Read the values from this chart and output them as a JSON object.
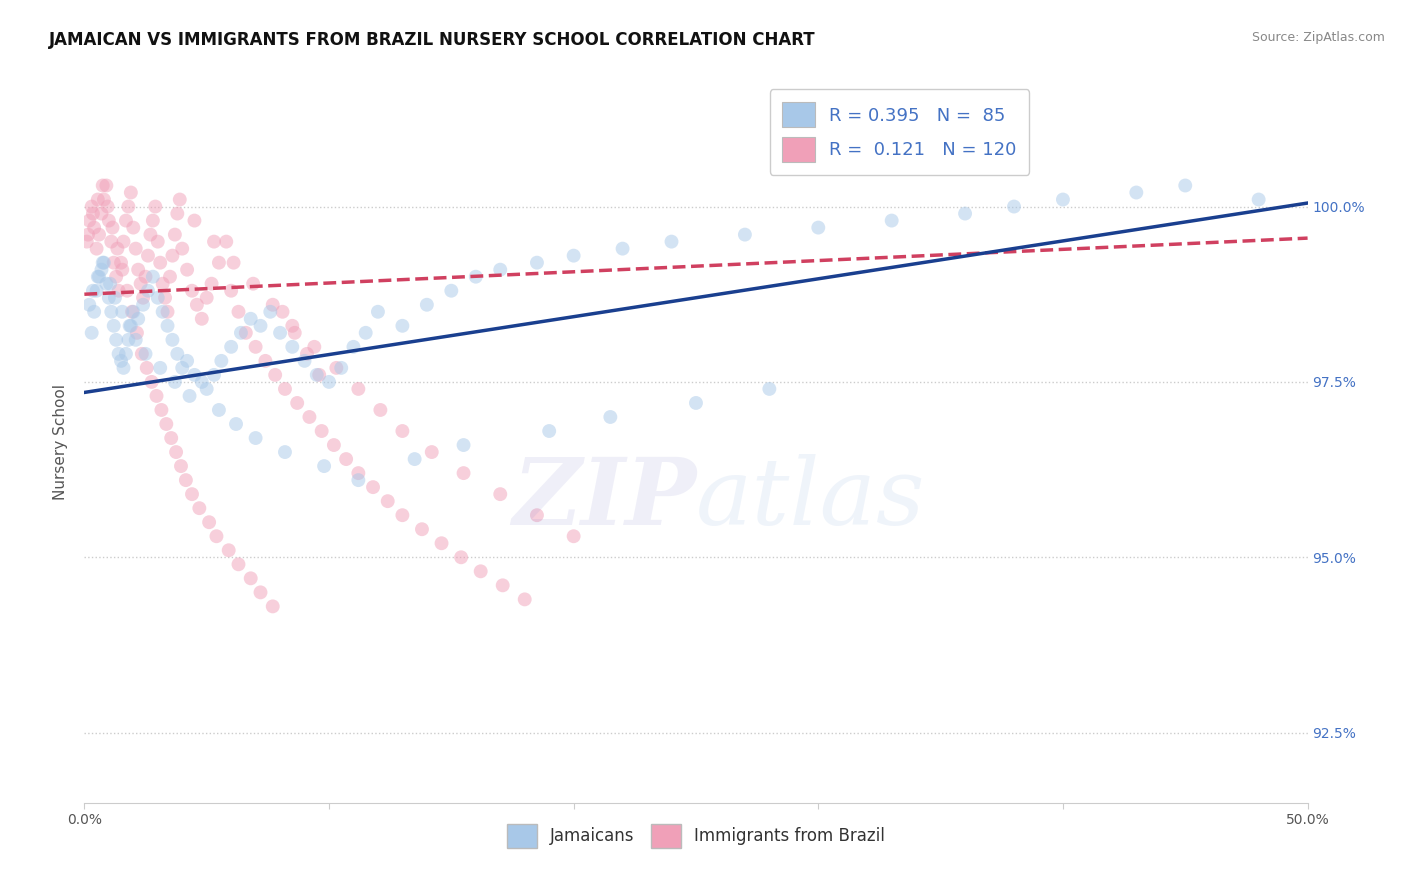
{
  "title": "JAMAICAN VS IMMIGRANTS FROM BRAZIL NURSERY SCHOOL CORRELATION CHART",
  "source_text": "Source: ZipAtlas.com",
  "ylabel": "Nursery School",
  "xlim": [
    0.0,
    50.0
  ],
  "ylim": [
    91.5,
    101.8
  ],
  "yticks": [
    92.5,
    95.0,
    97.5,
    100.0
  ],
  "ytick_labels": [
    "92.5%",
    "95.0%",
    "97.5%",
    "100.0%"
  ],
  "blue_color": "#a8c8e8",
  "pink_color": "#f0a0b8",
  "blue_line_color": "#1a3f8f",
  "pink_line_color": "#d04060",
  "watermark_zip": "ZIP",
  "watermark_atlas": "atlas",
  "watermark_alpha": 0.13,
  "background_color": "#ffffff",
  "grid_color": "#cccccc",
  "right_ytick_color": "#4472c4",
  "dot_size": 100,
  "dot_alpha": 0.5,
  "blue_line_x0": 0.0,
  "blue_line_y0": 97.35,
  "blue_line_x1": 50.0,
  "blue_line_y1": 100.05,
  "pink_line_x0": 0.0,
  "pink_line_y0": 98.75,
  "pink_line_x1": 50.0,
  "pink_line_y1": 99.55,
  "blue_x": [
    0.3,
    0.4,
    0.5,
    0.6,
    0.7,
    0.8,
    0.9,
    1.0,
    1.1,
    1.2,
    1.3,
    1.4,
    1.5,
    1.6,
    1.7,
    1.8,
    1.9,
    2.0,
    2.2,
    2.4,
    2.6,
    2.8,
    3.0,
    3.2,
    3.4,
    3.6,
    3.8,
    4.0,
    4.2,
    4.5,
    4.8,
    5.0,
    5.3,
    5.6,
    6.0,
    6.4,
    6.8,
    7.2,
    7.6,
    8.0,
    8.5,
    9.0,
    9.5,
    10.0,
    10.5,
    11.0,
    11.5,
    12.0,
    13.0,
    14.0,
    15.0,
    16.0,
    17.0,
    18.5,
    20.0,
    22.0,
    24.0,
    27.0,
    30.0,
    33.0,
    36.0,
    38.0,
    40.0,
    43.0,
    45.0,
    48.0,
    0.2,
    0.35,
    0.55,
    0.75,
    1.05,
    1.25,
    1.55,
    1.85,
    2.1,
    2.5,
    3.1,
    3.7,
    4.3,
    5.5,
    6.2,
    7.0,
    8.2,
    9.8,
    11.2,
    13.5,
    15.5,
    19.0,
    21.5,
    25.0,
    28.0
  ],
  "blue_y": [
    98.2,
    98.5,
    98.8,
    99.0,
    99.1,
    99.2,
    98.9,
    98.7,
    98.5,
    98.3,
    98.1,
    97.9,
    97.8,
    97.7,
    97.9,
    98.1,
    98.3,
    98.5,
    98.4,
    98.6,
    98.8,
    99.0,
    98.7,
    98.5,
    98.3,
    98.1,
    97.9,
    97.7,
    97.8,
    97.6,
    97.5,
    97.4,
    97.6,
    97.8,
    98.0,
    98.2,
    98.4,
    98.3,
    98.5,
    98.2,
    98.0,
    97.8,
    97.6,
    97.5,
    97.7,
    98.0,
    98.2,
    98.5,
    98.3,
    98.6,
    98.8,
    99.0,
    99.1,
    99.2,
    99.3,
    99.4,
    99.5,
    99.6,
    99.7,
    99.8,
    99.9,
    100.0,
    100.1,
    100.2,
    100.3,
    100.1,
    98.6,
    98.8,
    99.0,
    99.2,
    98.9,
    98.7,
    98.5,
    98.3,
    98.1,
    97.9,
    97.7,
    97.5,
    97.3,
    97.1,
    96.9,
    96.7,
    96.5,
    96.3,
    96.1,
    96.4,
    96.6,
    96.8,
    97.0,
    97.2,
    97.4
  ],
  "pink_x": [
    0.1,
    0.2,
    0.3,
    0.4,
    0.5,
    0.6,
    0.7,
    0.8,
    0.9,
    1.0,
    1.1,
    1.2,
    1.3,
    1.4,
    1.5,
    1.6,
    1.7,
    1.8,
    1.9,
    2.0,
    2.1,
    2.2,
    2.3,
    2.4,
    2.5,
    2.6,
    2.7,
    2.8,
    2.9,
    3.0,
    3.1,
    3.2,
    3.3,
    3.4,
    3.5,
    3.6,
    3.7,
    3.8,
    3.9,
    4.0,
    4.2,
    4.4,
    4.6,
    4.8,
    5.0,
    5.2,
    5.5,
    5.8,
    6.0,
    6.3,
    6.6,
    7.0,
    7.4,
    7.8,
    8.2,
    8.7,
    9.2,
    9.7,
    10.2,
    10.7,
    11.2,
    11.8,
    12.4,
    13.0,
    13.8,
    14.6,
    15.4,
    16.2,
    17.1,
    18.0,
    0.15,
    0.35,
    0.55,
    0.75,
    0.95,
    1.15,
    1.35,
    1.55,
    1.75,
    1.95,
    2.15,
    2.35,
    2.55,
    2.75,
    2.95,
    3.15,
    3.35,
    3.55,
    3.75,
    3.95,
    4.15,
    4.4,
    4.7,
    5.1,
    5.4,
    5.9,
    6.3,
    6.8,
    7.2,
    7.7,
    8.1,
    8.6,
    9.1,
    9.6,
    4.5,
    5.3,
    6.1,
    6.9,
    7.7,
    8.5,
    9.4,
    10.3,
    11.2,
    12.1,
    13.0,
    14.2,
    15.5,
    17.0,
    18.5,
    20.0
  ],
  "pink_y": [
    99.5,
    99.8,
    100.0,
    99.7,
    99.4,
    99.6,
    99.9,
    100.1,
    100.3,
    99.8,
    99.5,
    99.2,
    99.0,
    98.8,
    99.2,
    99.5,
    99.8,
    100.0,
    100.2,
    99.7,
    99.4,
    99.1,
    98.9,
    98.7,
    99.0,
    99.3,
    99.6,
    99.8,
    100.0,
    99.5,
    99.2,
    98.9,
    98.7,
    98.5,
    99.0,
    99.3,
    99.6,
    99.9,
    100.1,
    99.4,
    99.1,
    98.8,
    98.6,
    98.4,
    98.7,
    98.9,
    99.2,
    99.5,
    98.8,
    98.5,
    98.2,
    98.0,
    97.8,
    97.6,
    97.4,
    97.2,
    97.0,
    96.8,
    96.6,
    96.4,
    96.2,
    96.0,
    95.8,
    95.6,
    95.4,
    95.2,
    95.0,
    94.8,
    94.6,
    94.4,
    99.6,
    99.9,
    100.1,
    100.3,
    100.0,
    99.7,
    99.4,
    99.1,
    98.8,
    98.5,
    98.2,
    97.9,
    97.7,
    97.5,
    97.3,
    97.1,
    96.9,
    96.7,
    96.5,
    96.3,
    96.1,
    95.9,
    95.7,
    95.5,
    95.3,
    95.1,
    94.9,
    94.7,
    94.5,
    94.3,
    98.5,
    98.2,
    97.9,
    97.6,
    99.8,
    99.5,
    99.2,
    98.9,
    98.6,
    98.3,
    98.0,
    97.7,
    97.4,
    97.1,
    96.8,
    96.5,
    96.2,
    95.9,
    95.6,
    95.3
  ]
}
